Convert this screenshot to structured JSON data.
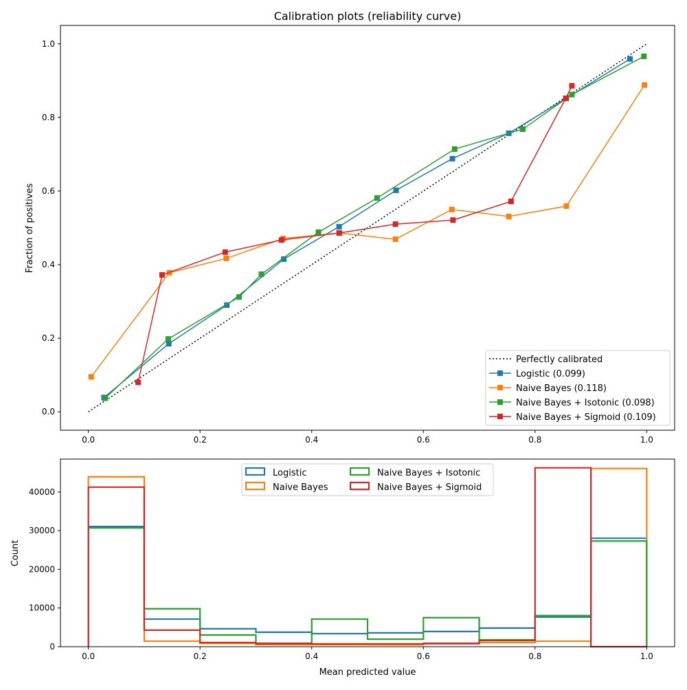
{
  "chart_data": [
    {
      "type": "line",
      "title": "Calibration plots  (reliability curve)",
      "xlabel": "",
      "ylabel": "Fraction of positives",
      "xlim": [
        -0.05,
        1.05
      ],
      "ylim": [
        -0.05,
        1.05
      ],
      "xticks": [
        "0.0",
        "0.2",
        "0.4",
        "0.6",
        "0.8",
        "1.0"
      ],
      "yticks": [
        "0.0",
        "0.2",
        "0.4",
        "0.6",
        "0.8",
        "1.0"
      ],
      "grid": false,
      "legend_position": "bottom-right",
      "series": [
        {
          "name": "Perfectly calibrated",
          "color": "#000000",
          "style": "dotted",
          "marker": "none",
          "x": [
            0,
            1
          ],
          "y": [
            0,
            1
          ]
        },
        {
          "name": "Logistic (0.099)",
          "color": "#1f77b4",
          "style": "solid",
          "marker": "square",
          "x": [
            0.028,
            0.144,
            0.248,
            0.35,
            0.449,
            0.551,
            0.652,
            0.753,
            0.856,
            0.97
          ],
          "y": [
            0.039,
            0.185,
            0.29,
            0.415,
            0.503,
            0.602,
            0.688,
            0.757,
            0.852,
            0.959
          ]
        },
        {
          "name": "Naive Bayes (0.118)",
          "color": "#ff7f0e",
          "style": "solid",
          "marker": "square",
          "x": [
            0.005,
            0.145,
            0.247,
            0.349,
            0.45,
            0.55,
            0.651,
            0.753,
            0.856,
            0.996
          ],
          "y": [
            0.095,
            0.378,
            0.417,
            0.471,
            0.486,
            0.469,
            0.55,
            0.531,
            0.559,
            0.888
          ]
        },
        {
          "name": "Naive Bayes + Isotonic (0.098)",
          "color": "#2ca02c",
          "style": "solid",
          "marker": "square",
          "x": [
            0.03,
            0.143,
            0.27,
            0.31,
            0.412,
            0.517,
            0.656,
            0.778,
            0.866,
            0.995
          ],
          "y": [
            0.037,
            0.198,
            0.312,
            0.374,
            0.488,
            0.581,
            0.714,
            0.768,
            0.862,
            0.966
          ]
        },
        {
          "name": "Naive Bayes + Sigmoid (0.109)",
          "color": "#d62728",
          "style": "solid",
          "marker": "square",
          "x": [
            0.089,
            0.132,
            0.245,
            0.346,
            0.449,
            0.55,
            0.653,
            0.757,
            0.855,
            0.866
          ],
          "y": [
            0.08,
            0.372,
            0.434,
            0.467,
            0.486,
            0.51,
            0.521,
            0.572,
            0.852,
            0.886
          ]
        }
      ]
    },
    {
      "type": "bar",
      "subtype": "step-histogram",
      "title": "",
      "xlabel": "Mean predicted value",
      "ylabel": "Count",
      "xlim": [
        -0.05,
        1.05
      ],
      "ylim": [
        0,
        48500
      ],
      "xticks": [
        "0.0",
        "0.2",
        "0.4",
        "0.6",
        "0.8",
        "1.0"
      ],
      "yticks": [
        "0",
        "10000",
        "20000",
        "30000",
        "40000"
      ],
      "bin_edges": [
        0,
        0.1,
        0.2,
        0.3,
        0.4,
        0.5,
        0.6,
        0.7,
        0.8,
        0.9,
        1.0
      ],
      "grid": false,
      "legend_position": "upper-center",
      "legend_columns": 2,
      "series": [
        {
          "name": "Logistic",
          "color": "#1f77b4",
          "values": [
            31070,
            7140,
            4640,
            3750,
            3390,
            3570,
            3930,
            4820,
            7680,
            28040
          ]
        },
        {
          "name": "Naive Bayes",
          "color": "#ff7f0e",
          "values": [
            43930,
            1430,
            900,
            540,
            540,
            540,
            710,
            1070,
            1430,
            46070
          ]
        },
        {
          "name": "Naive Bayes + Isotonic",
          "color": "#2ca02c",
          "values": [
            30710,
            9820,
            3040,
            710,
            7140,
            1960,
            7500,
            1790,
            8040,
            27320
          ]
        },
        {
          "name": "Naive Bayes + Sigmoid",
          "color": "#d62728",
          "values": [
            41250,
            4290,
            1070,
            890,
            710,
            710,
            890,
            1610,
            46250,
            0
          ]
        }
      ]
    }
  ]
}
